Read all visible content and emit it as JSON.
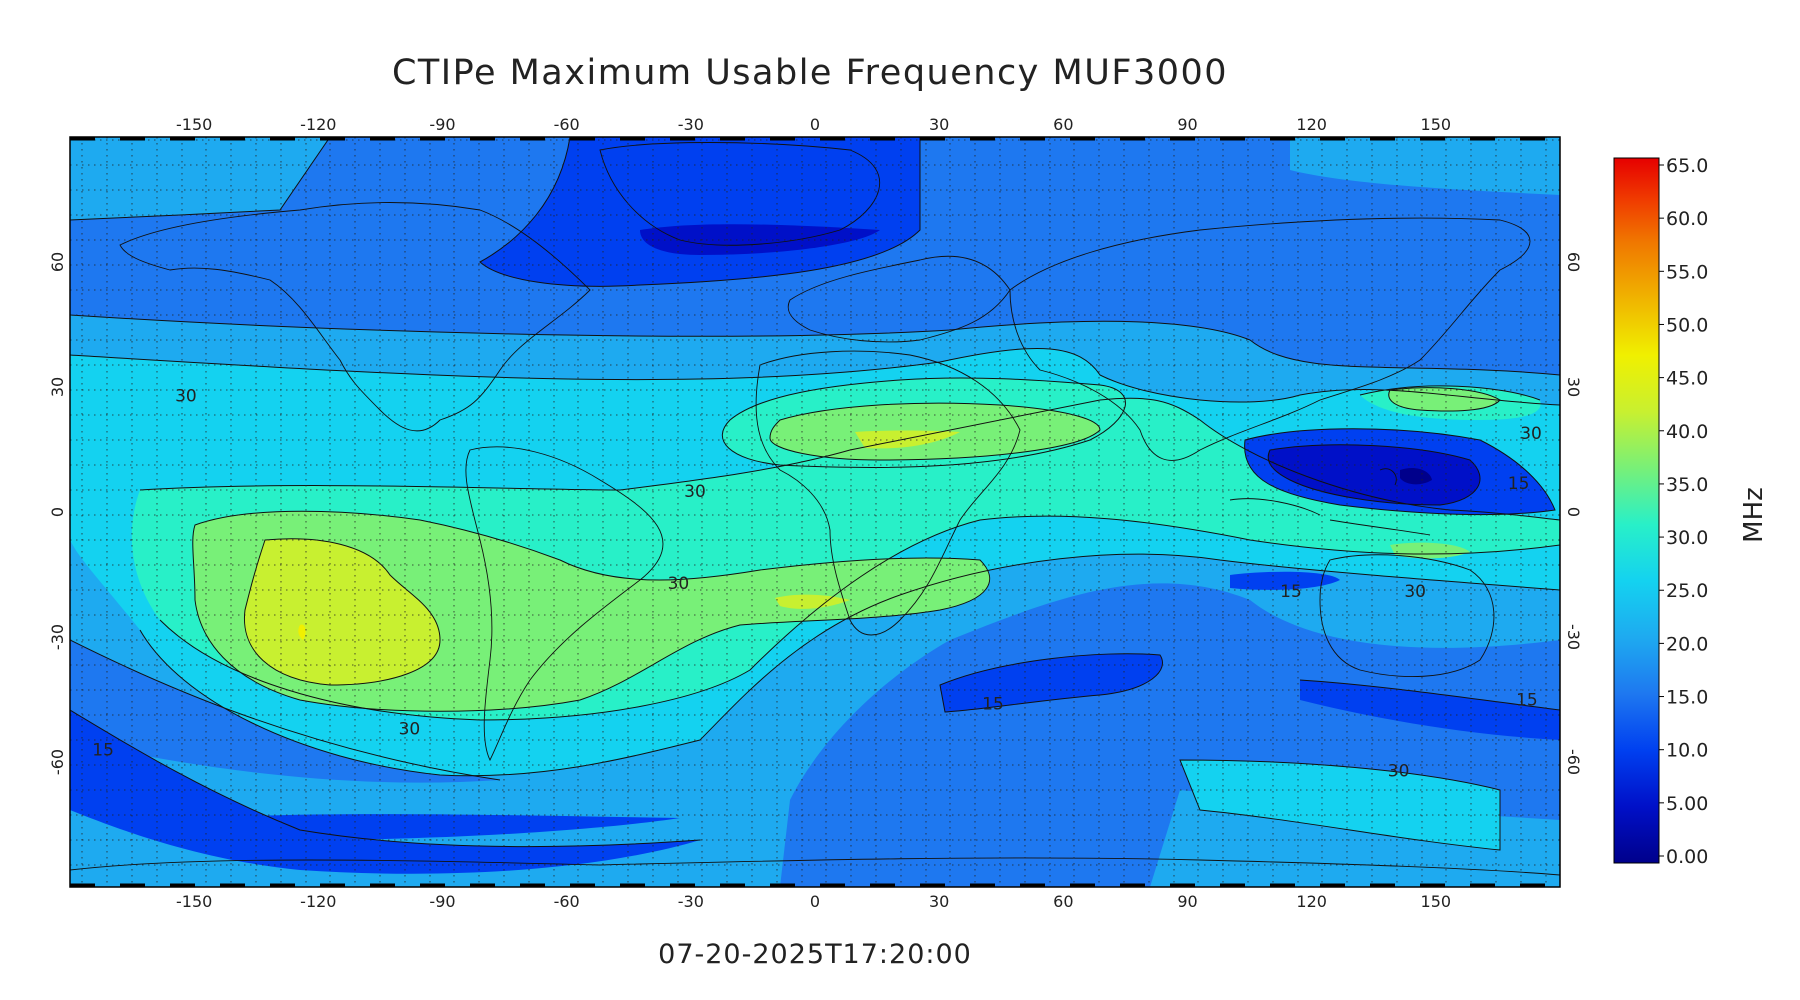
{
  "title": "CTIPe Maximum Usable Frequency MUF3000",
  "timestamp": "07-20-2025T17:20:00",
  "colorbar": {
    "unit": "MHz",
    "ticks": [
      "0.00",
      "5.00",
      "10.0",
      "15.0",
      "20.0",
      "25.0",
      "30.0",
      "35.0",
      "40.0",
      "45.0",
      "50.0",
      "55.0",
      "60.0",
      "65.0"
    ],
    "colors": [
      "#00008b",
      "#0010c8",
      "#0040f0",
      "#1e78f0",
      "#1eaaf0",
      "#14d2f0",
      "#28f0c8",
      "#78f078",
      "#c8f030",
      "#f0f000",
      "#f0b400",
      "#f07800",
      "#f03c00",
      "#e60000"
    ]
  },
  "map": {
    "lon_ticks": [
      "-150",
      "-120",
      "-90",
      "-60",
      "-30",
      "0",
      "30",
      "60",
      "90",
      "120",
      "150"
    ],
    "lat_ticks": [
      "60",
      "30",
      "0",
      "-30",
      "-60"
    ],
    "contour_labels": [
      {
        "text": "30",
        "lon": -152,
        "lat": 28
      },
      {
        "text": "30",
        "lon": -29,
        "lat": 5
      },
      {
        "text": "30",
        "lon": -33,
        "lat": -17
      },
      {
        "text": "30",
        "lon": -98,
        "lat": -52
      },
      {
        "text": "30",
        "lon": 145,
        "lat": -19
      },
      {
        "text": "30",
        "lon": 141,
        "lat": -62
      },
      {
        "text": "30",
        "lon": 173,
        "lat": 19
      },
      {
        "text": "15",
        "lon": -172,
        "lat": -57
      },
      {
        "text": "15",
        "lon": 43,
        "lat": -46
      },
      {
        "text": "15",
        "lon": 115,
        "lat": -19
      },
      {
        "text": "15",
        "lon": 170,
        "lat": 7
      },
      {
        "text": "15",
        "lon": 172,
        "lat": -45
      }
    ]
  }
}
